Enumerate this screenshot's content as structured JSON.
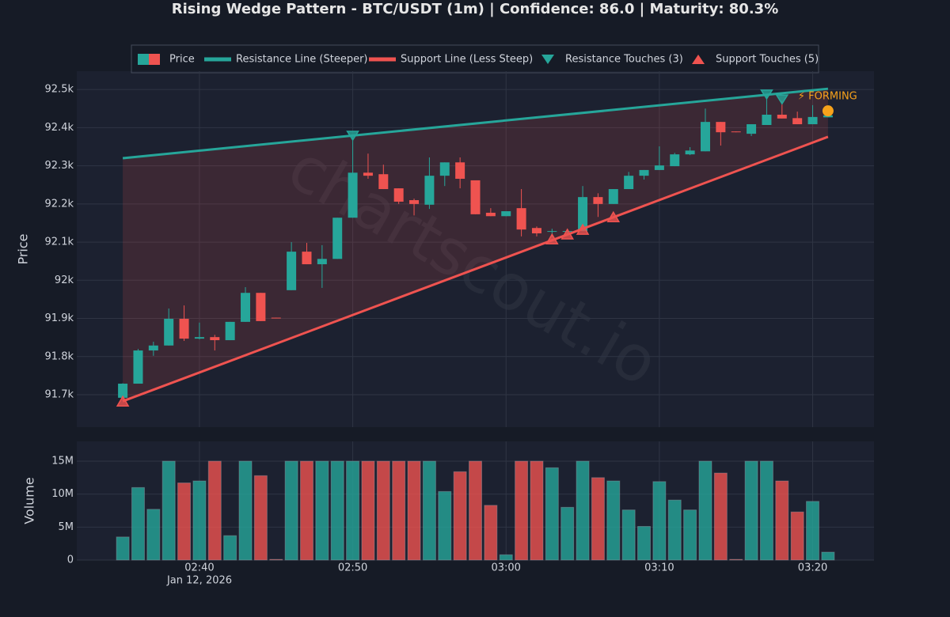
{
  "chart_data": [
    {
      "type": "candlestick",
      "title": "Rising Wedge Pattern - BTC/USDT (1m) | Confidence: 86.0 | Maturity: 80.3%",
      "y_label": "Price",
      "watermark": "chartscout.io",
      "date_label": "Jan 12, 2026",
      "up_color": "#26a69a",
      "down_color": "#ef5350",
      "grid": true,
      "fill_color": "#ef5350",
      "x": [
        "2026-01-12 02:35",
        "2026-01-12 02:36",
        "2026-01-12 02:37",
        "2026-01-12 02:38",
        "2026-01-12 02:39",
        "2026-01-12 02:40",
        "2026-01-12 02:41",
        "2026-01-12 02:42",
        "2026-01-12 02:43",
        "2026-01-12 02:44",
        "2026-01-12 02:45",
        "2026-01-12 02:46",
        "2026-01-12 02:47",
        "2026-01-12 02:48",
        "2026-01-12 02:49",
        "2026-01-12 02:50",
        "2026-01-12 02:51",
        "2026-01-12 02:52",
        "2026-01-12 02:53",
        "2026-01-12 02:54",
        "2026-01-12 02:55",
        "2026-01-12 02:56",
        "2026-01-12 02:57",
        "2026-01-12 02:58",
        "2026-01-12 02:59",
        "2026-01-12 03:00",
        "2026-01-12 03:01",
        "2026-01-12 03:02",
        "2026-01-12 03:03",
        "2026-01-12 03:04",
        "2026-01-12 03:05",
        "2026-01-12 03:06",
        "2026-01-12 03:07",
        "2026-01-12 03:08",
        "2026-01-12 03:09",
        "2026-01-12 03:10",
        "2026-01-12 03:11",
        "2026-01-12 03:12",
        "2026-01-12 03:13",
        "2026-01-12 03:14",
        "2026-01-12 03:15",
        "2026-01-12 03:16",
        "2026-01-12 03:17",
        "2026-01-12 03:18",
        "2026-01-12 03:19",
        "2026-01-12 03:20",
        "2026-01-12 03:21"
      ],
      "series": [
        {
          "name": "Price",
          "open": [
            91692,
            91729,
            91816,
            91829,
            91899,
            91847,
            91851,
            91843,
            91891,
            91967,
            91902,
            91974,
            92075,
            92042,
            92056,
            92164,
            92282,
            92278,
            92241,
            92210,
            92198,
            92274,
            92309,
            92262,
            92177,
            92168,
            92189,
            92137,
            92127,
            92128,
            92129,
            92218,
            92200,
            92239,
            92274,
            92289,
            92299,
            92330,
            92338,
            92415,
            92390,
            92384,
            92407,
            92434,
            92425,
            92409,
            92427
          ],
          "high": [
            91730,
            91820,
            91839,
            91926,
            91934,
            91889,
            91857,
            91891,
            91982,
            91967,
            91902,
            92100,
            92098,
            92092,
            92164,
            92378,
            92332,
            92303,
            92241,
            92214,
            92322,
            92309,
            92322,
            92262,
            92189,
            92181,
            92239,
            92141,
            92135,
            92130,
            92247,
            92228,
            92239,
            92284,
            92289,
            92351,
            92334,
            92349,
            92450,
            92415,
            92390,
            92409,
            92486,
            92471,
            92442,
            92459,
            92434
          ],
          "low": [
            91685,
            91729,
            91802,
            91829,
            91841,
            91845,
            91816,
            91843,
            91891,
            91893,
            91900,
            91974,
            92042,
            91980,
            92056,
            92164,
            92266,
            92239,
            92200,
            92170,
            92187,
            92247,
            92241,
            92173,
            92168,
            92168,
            92115,
            92115,
            92113,
            92120,
            92129,
            92166,
            92200,
            92239,
            92264,
            92289,
            92299,
            92328,
            92338,
            92353,
            92388,
            92378,
            92407,
            92424,
            92409,
            92409,
            92427
          ],
          "close": [
            91729,
            91816,
            91829,
            91899,
            91847,
            91851,
            91843,
            91891,
            91967,
            91893,
            91900,
            92075,
            92042,
            92056,
            92164,
            92282,
            92274,
            92239,
            92206,
            92200,
            92274,
            92309,
            92266,
            92173,
            92168,
            92181,
            92133,
            92123,
            92129,
            92129,
            92218,
            92200,
            92239,
            92274,
            92289,
            92301,
            92330,
            92340,
            92415,
            92388,
            92388,
            92409,
            92434,
            92424,
            92409,
            92428,
            92432
          ]
        },
        {
          "name": "Resistance Line (Steeper)",
          "kind": "line",
          "color": "#26a69a",
          "x": [
            "2026-01-12 02:35",
            "2026-01-12 03:21"
          ],
          "values": [
            92320,
            92502
          ]
        },
        {
          "name": "Support Line (Less Steep)",
          "kind": "line",
          "color": "#ef5350",
          "x": [
            "2026-01-12 02:35",
            "2026-01-12 03:21"
          ],
          "values": [
            91683,
            92376
          ]
        },
        {
          "name": "Resistance Touches (3)",
          "kind": "touch-down",
          "color": "#26a69a",
          "x": [
            "2026-01-12 02:50",
            "2026-01-12 03:17",
            "2026-01-12 03:18"
          ],
          "values": [
            92378,
            92486,
            92473
          ]
        },
        {
          "name": "Support Touches (5)",
          "kind": "touch-up",
          "color": "#ef5350",
          "x": [
            "2026-01-12 02:35",
            "2026-01-12 03:03",
            "2026-01-12 03:04",
            "2026-01-12 03:05",
            "2026-01-12 03:07"
          ],
          "values": [
            91683,
            92108,
            92121,
            92133,
            92166
          ]
        }
      ],
      "forming": {
        "label": "⚡ FORMING",
        "color": "#f7a21b",
        "x": "2026-01-12 03:21",
        "value": 92444
      },
      "xlim": [
        "2026-01-12 02:32",
        "2026-01-12 03:24"
      ],
      "xticks": [
        {
          "value": "2026-01-12 02:40",
          "label": "02:40"
        },
        {
          "value": "2026-01-12 02:50",
          "label": "02:50"
        },
        {
          "value": "2026-01-12 03:00",
          "label": "03:00"
        },
        {
          "value": "2026-01-12 03:10",
          "label": "03:10"
        },
        {
          "value": "2026-01-12 03:20",
          "label": "03:20"
        }
      ],
      "ylim": [
        91615,
        92548
      ],
      "yticks": [
        {
          "value": 91700,
          "label": "91.7k"
        },
        {
          "value": 91800,
          "label": "91.8k"
        },
        {
          "value": 91900,
          "label": "91.9k"
        },
        {
          "value": 92000,
          "label": "92k"
        },
        {
          "value": 92100,
          "label": "92.1k"
        },
        {
          "value": 92200,
          "label": "92.2k"
        },
        {
          "value": 92300,
          "label": "92.3k"
        },
        {
          "value": 92400,
          "label": "92.4k"
        },
        {
          "value": 92500,
          "label": "92.5k"
        }
      ]
    },
    {
      "type": "bar",
      "y_label": "Volume",
      "grid": true,
      "values": [
        3500000,
        11000000,
        7700000,
        15000000,
        11700000,
        12000000,
        15000000,
        3700000,
        15000000,
        12800000,
        100000,
        15000000,
        15000000,
        15000000,
        15000000,
        15000000,
        15000000,
        15000000,
        15000000,
        15000000,
        15000000,
        10400000,
        13400000,
        15000000,
        8300000,
        800000,
        15000000,
        15000000,
        14000000,
        8000000,
        15000000,
        12500000,
        12000000,
        7600000,
        5100000,
        11900000,
        9100000,
        7600000,
        15000000,
        13200000,
        100000,
        15000000,
        15000000,
        12000000,
        7300000,
        8900000,
        1200000
      ],
      "ylim": [
        0,
        18000000
      ],
      "yticks": [
        {
          "value": 0,
          "label": "0"
        },
        {
          "value": 5000000,
          "label": "5M"
        },
        {
          "value": 10000000,
          "label": "10M"
        },
        {
          "value": 15000000,
          "label": "15M"
        }
      ]
    }
  ]
}
